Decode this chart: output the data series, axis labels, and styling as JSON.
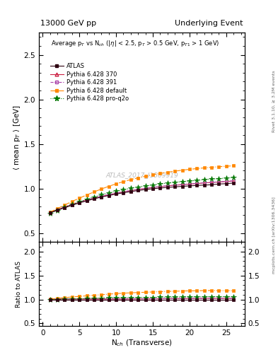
{
  "title_left": "13000 GeV pp",
  "title_right": "Underlying Event",
  "right_label_top": "Rivet 3.1.10, ≥ 3.2M events",
  "right_label_bottom": "mcplots.cern.ch [arXiv:1306.3436]",
  "watermark": "ATLAS_2017_I1509919",
  "xlabel": "N$_{ch}$ (Transverse)",
  "ylabel_main": "$\\langle$ mean p$_T$ $\\rangle$ [GeV]",
  "ylabel_ratio": "Ratio to ATLAS",
  "annotation": "Average p$_T$ vs N$_{ch}$ ($|\\eta|$ < 2.5, p$_T$ > 0.5 GeV, p$_{T1}$ > 1 GeV)",
  "ylim_main": [
    0.4,
    2.75
  ],
  "ylim_ratio": [
    0.45,
    2.2
  ],
  "xlim": [
    -0.5,
    27.5
  ],
  "yticks_main": [
    0.5,
    1.0,
    1.5,
    2.0,
    2.5
  ],
  "yticks_ratio": [
    0.5,
    1.0,
    1.5,
    2.0
  ],
  "xticks": [
    0,
    5,
    10,
    15,
    20,
    25
  ],
  "atlas_x": [
    1,
    2,
    3,
    4,
    5,
    6,
    7,
    8,
    9,
    10,
    11,
    12,
    13,
    14,
    15,
    16,
    17,
    18,
    19,
    20,
    21,
    22,
    23,
    24,
    25,
    26
  ],
  "atlas_y": [
    0.728,
    0.757,
    0.785,
    0.812,
    0.839,
    0.862,
    0.884,
    0.905,
    0.922,
    0.938,
    0.953,
    0.966,
    0.978,
    0.989,
    0.998,
    1.006,
    1.013,
    1.019,
    1.025,
    1.03,
    1.035,
    1.039,
    1.043,
    1.051,
    1.055,
    1.062
  ],
  "p370_x": [
    1,
    2,
    3,
    4,
    5,
    6,
    7,
    8,
    9,
    10,
    11,
    12,
    13,
    14,
    15,
    16,
    17,
    18,
    19,
    20,
    21,
    22,
    23,
    24,
    25,
    26
  ],
  "p370_y": [
    0.73,
    0.762,
    0.793,
    0.82,
    0.847,
    0.87,
    0.892,
    0.912,
    0.93,
    0.947,
    0.962,
    0.977,
    0.99,
    1.002,
    1.012,
    1.021,
    1.03,
    1.037,
    1.044,
    1.05,
    1.056,
    1.063,
    1.068,
    1.074,
    1.079,
    1.085
  ],
  "p391_x": [
    1,
    2,
    3,
    4,
    5,
    6,
    7,
    8,
    9,
    10,
    11,
    12,
    13,
    14,
    15,
    16,
    17,
    18,
    19,
    20,
    21,
    22,
    23,
    24,
    25,
    26
  ],
  "p391_y": [
    0.732,
    0.764,
    0.795,
    0.822,
    0.849,
    0.872,
    0.894,
    0.914,
    0.932,
    0.949,
    0.964,
    0.979,
    0.992,
    1.004,
    1.014,
    1.023,
    1.032,
    1.039,
    1.046,
    1.052,
    1.058,
    1.065,
    1.07,
    1.076,
    1.081,
    1.087
  ],
  "pdef_x": [
    1,
    2,
    3,
    4,
    5,
    6,
    7,
    8,
    9,
    10,
    11,
    12,
    13,
    14,
    15,
    16,
    17,
    18,
    19,
    20,
    21,
    22,
    23,
    24,
    25,
    26
  ],
  "pdef_y": [
    0.735,
    0.775,
    0.815,
    0.855,
    0.892,
    0.928,
    0.962,
    0.995,
    1.025,
    1.053,
    1.078,
    1.1,
    1.12,
    1.138,
    1.155,
    1.17,
    1.183,
    1.195,
    1.206,
    1.216,
    1.224,
    1.232,
    1.239,
    1.245,
    1.25,
    1.256
  ],
  "pq2o_x": [
    1,
    2,
    3,
    4,
    5,
    6,
    7,
    8,
    9,
    10,
    11,
    12,
    13,
    14,
    15,
    16,
    17,
    18,
    19,
    20,
    21,
    22,
    23,
    24,
    25,
    26
  ],
  "pq2o_y": [
    0.72,
    0.755,
    0.79,
    0.822,
    0.852,
    0.88,
    0.906,
    0.93,
    0.951,
    0.97,
    0.987,
    1.003,
    1.017,
    1.03,
    1.041,
    1.052,
    1.061,
    1.07,
    1.078,
    1.085,
    1.092,
    1.099,
    1.105,
    1.112,
    1.118,
    1.124
  ],
  "atlas_color": "#2d0010",
  "p370_color": "#cc2244",
  "p391_color": "#aa44aa",
  "pdef_color": "#ff8800",
  "pq2o_color": "#007700",
  "atlas_markersize": 3.5,
  "p370_markersize": 3.5,
  "p391_markersize": 3.5,
  "pdef_markersize": 3.5,
  "pq2o_markersize": 5.5
}
